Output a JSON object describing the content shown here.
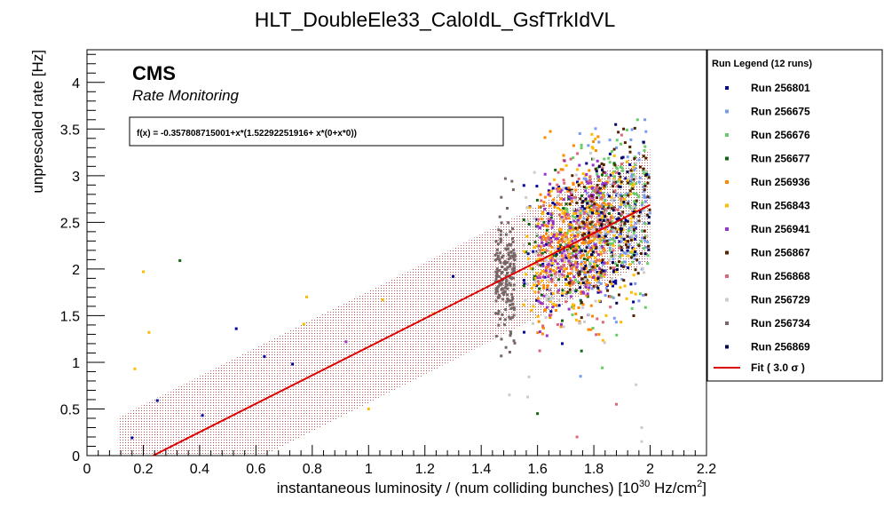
{
  "chart_data": {
    "type": "scatter",
    "title": "HLT_DoubleEle33_CaloIdL_GsfTrkIdVL",
    "xlabel": "instantaneous luminosity / (num colliding bunches) [10",
    "xlabel_sup1": "30",
    "xlabel_mid": " Hz/cm",
    "xlabel_sup2": "2",
    "xlabel_end": "]",
    "ylabel": "unprescaled rate [Hz]",
    "xlim": [
      0,
      2.2
    ],
    "ylim": [
      0,
      4.35
    ],
    "xticks": [
      "0",
      "0.2",
      "0.4",
      "0.6",
      "0.8",
      "1",
      "1.2",
      "1.4",
      "1.6",
      "1.8",
      "2",
      "2.2"
    ],
    "xtick_values": [
      0,
      0.2,
      0.4,
      0.6,
      0.8,
      1.0,
      1.2,
      1.4,
      1.6,
      1.8,
      2.0,
      2.2
    ],
    "yticks": [
      "0",
      "0.5",
      "1",
      "1.5",
      "2",
      "2.5",
      "3",
      "3.5",
      "4"
    ],
    "ytick_values": [
      0,
      0.5,
      1.0,
      1.5,
      2.0,
      2.5,
      3.0,
      3.5,
      4.0
    ],
    "grid": false,
    "legend_placement": "right",
    "label_cms": "CMS",
    "label_subtitle": "Rate Monitoring",
    "fit_formula": "f(x) = -0.357808715001+x*(1.52292251916+ x*(0+x*0))",
    "fit": {
      "intercept": -0.357808715001,
      "slope": 1.52292251916,
      "x_range": [
        0.23,
        2.0
      ],
      "sigma": 3.0,
      "band_half_width": 0.6,
      "color": "#dd0000",
      "band_color": "#b03030"
    },
    "legend_title": "Run Legend (12 runs)",
    "legend_fit_label": "Fit ( 3.0  σ )",
    "series": [
      {
        "name": "Run 256801",
        "color": "#000099",
        "x_range": [
          1.55,
          1.95
        ],
        "n": 120
      },
      {
        "name": "Run 256675",
        "color": "#7799ee",
        "x_range": [
          1.75,
          2.0
        ],
        "n": 160
      },
      {
        "name": "Run 256676",
        "color": "#66cc66",
        "x_range": [
          1.7,
          2.0
        ],
        "n": 160
      },
      {
        "name": "Run 256677",
        "color": "#116611",
        "x_range": [
          1.55,
          1.9
        ],
        "n": 90
      },
      {
        "name": "Run 256936",
        "color": "#ff8800",
        "x_range": [
          1.6,
          1.85
        ],
        "n": 240
      },
      {
        "name": "Run 256843",
        "color": "#ffbb00",
        "x_range": [
          1.55,
          1.95
        ],
        "n": 200
      },
      {
        "name": "Run 256941",
        "color": "#9933cc",
        "x_range": [
          1.6,
          1.85
        ],
        "n": 160
      },
      {
        "name": "Run 256867",
        "color": "#552200",
        "x_range": [
          1.7,
          2.0
        ],
        "n": 150
      },
      {
        "name": "Run 256868",
        "color": "#dd6677",
        "x_range": [
          1.6,
          1.9
        ],
        "n": 130
      },
      {
        "name": "Run 256729",
        "color": "#cccccc",
        "x_range": [
          1.55,
          2.0
        ],
        "n": 110
      },
      {
        "name": "Run 256734",
        "color": "#776666",
        "x_range": [
          1.45,
          1.52
        ],
        "n": 180
      },
      {
        "name": "Run 256869",
        "color": "#000055",
        "x_range": [
          1.75,
          2.0
        ],
        "n": 60
      }
    ],
    "outliers": [
      {
        "x": 0.2,
        "y": 1.97,
        "color": "#ffbb00"
      },
      {
        "x": 0.33,
        "y": 2.09,
        "color": "#116611"
      },
      {
        "x": 0.22,
        "y": 1.32,
        "color": "#ffbb00"
      },
      {
        "x": 0.17,
        "y": 0.93,
        "color": "#ffbb00"
      },
      {
        "x": 0.53,
        "y": 1.36,
        "color": "#000099"
      },
      {
        "x": 0.63,
        "y": 1.06,
        "color": "#000099"
      },
      {
        "x": 0.73,
        "y": 0.98,
        "color": "#000099"
      },
      {
        "x": 0.77,
        "y": 1.41,
        "color": "#ffbb00"
      },
      {
        "x": 0.78,
        "y": 1.7,
        "color": "#ffbb00"
      },
      {
        "x": 0.92,
        "y": 1.22,
        "color": "#9933cc"
      },
      {
        "x": 0.41,
        "y": 0.43,
        "color": "#000099"
      },
      {
        "x": 0.25,
        "y": 0.59,
        "color": "#000099"
      },
      {
        "x": 0.16,
        "y": 0.19,
        "color": "#000099"
      },
      {
        "x": 1.23,
        "y": 1.52,
        "color": "#ffbb00"
      },
      {
        "x": 1.3,
        "y": 1.92,
        "color": "#000099"
      },
      {
        "x": 1.05,
        "y": 1.67,
        "color": "#ffbb00"
      },
      {
        "x": 1.0,
        "y": 0.5,
        "color": "#ffbb00"
      },
      {
        "x": 1.83,
        "y": 0.94,
        "color": "#66cc66"
      },
      {
        "x": 1.74,
        "y": 0.2,
        "color": "#dd6677"
      },
      {
        "x": 1.97,
        "y": 0.3,
        "color": "#cccccc"
      },
      {
        "x": 1.97,
        "y": 0.15,
        "color": "#cccccc"
      },
      {
        "x": 1.6,
        "y": 0.45,
        "color": "#116611"
      },
      {
        "x": 1.88,
        "y": 0.55,
        "color": "#dd6677"
      },
      {
        "x": 1.95,
        "y": 0.76,
        "color": "#cccccc"
      },
      {
        "x": 1.5,
        "y": 0.65,
        "color": "#cccccc"
      }
    ]
  }
}
